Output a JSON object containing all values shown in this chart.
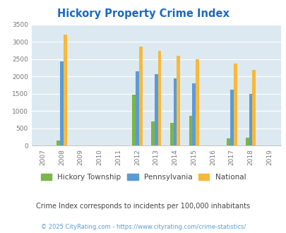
{
  "title": "Hickory Property Crime Index",
  "years": [
    2007,
    2008,
    2009,
    2010,
    2011,
    2012,
    2013,
    2014,
    2015,
    2016,
    2017,
    2018,
    2019
  ],
  "hickory": [
    0,
    150,
    0,
    0,
    0,
    1470,
    700,
    650,
    870,
    0,
    215,
    225,
    0
  ],
  "pennsylvania": [
    0,
    2440,
    0,
    0,
    0,
    2150,
    2070,
    1940,
    1800,
    0,
    1620,
    1490,
    0
  ],
  "national": [
    0,
    3200,
    0,
    0,
    0,
    2860,
    2730,
    2590,
    2490,
    0,
    2370,
    2190,
    0
  ],
  "hickory_color": "#7ab648",
  "pennsylvania_color": "#5b9bd5",
  "national_color": "#f6b93b",
  "bg_color": "#dce9f0",
  "title_color": "#1a6abf",
  "subtitle": "Crime Index corresponds to incidents per 100,000 inhabitants",
  "subtitle_color": "#444444",
  "footer": "© 2025 CityRating.com - https://www.cityrating.com/crime-statistics/",
  "footer_color": "#5b9bd5",
  "ylim": [
    0,
    3500
  ],
  "yticks": [
    0,
    500,
    1000,
    1500,
    2000,
    2500,
    3000,
    3500
  ],
  "grid_color": "#ffffff",
  "bar_width": 0.18
}
